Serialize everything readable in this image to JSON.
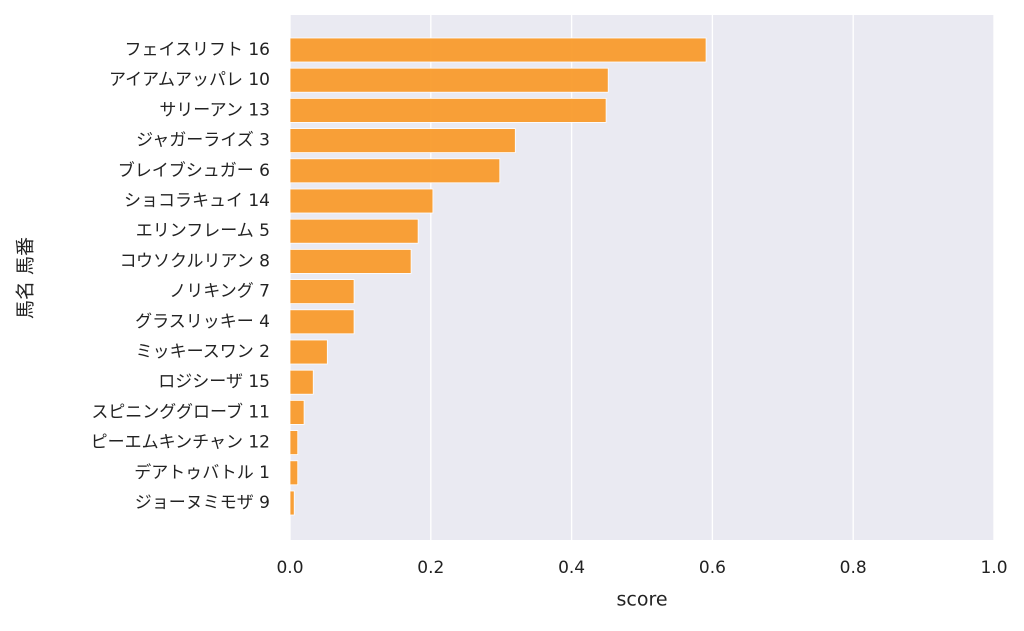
{
  "chart_data": {
    "type": "barh",
    "categories": [
      "フェイスリフト 16",
      "アイアムアッパレ 10",
      "サリーアン 13",
      "ジャガーライズ 3",
      "ブレイブシュガー 6",
      "ショコラキュイ 14",
      "エリンフレーム 5",
      "コウソクルリアン 8",
      "ノリキング 7",
      "グラスリッキー 4",
      "ミッキースワン 2",
      "ロジシーザ 15",
      "スピニンググローブ 11",
      "ピーエムキンチャン 12",
      "デアトゥバトル 1",
      "ジョーヌミモザ 9"
    ],
    "values": [
      0.591,
      0.452,
      0.449,
      0.32,
      0.298,
      0.203,
      0.182,
      0.172,
      0.091,
      0.091,
      0.053,
      0.033,
      0.02,
      0.011,
      0.011,
      0.006
    ],
    "color": "#f99b2c",
    "xlabel": "score",
    "ylabel": "馬名 馬番",
    "xlim": [
      0,
      1
    ],
    "xticks": [
      {
        "value": 0,
        "label": "0.0"
      },
      0.2,
      0.4,
      0.6,
      0.8,
      {
        "value": 1,
        "label": "1.0"
      }
    ],
    "grid": true
  }
}
